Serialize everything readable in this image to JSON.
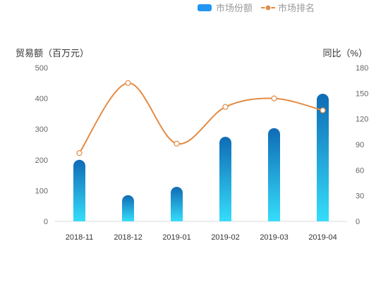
{
  "chart_data": {
    "type": "bar",
    "categories": [
      "2018-11",
      "2018-12",
      "2019-01",
      "2019-02",
      "2019-03",
      "2019-04"
    ],
    "series": [
      {
        "name": "市场份额",
        "type": "bar",
        "axis": "left",
        "values": [
          200,
          85,
          112,
          275,
          303,
          415
        ]
      },
      {
        "name": "市场排名",
        "type": "line",
        "axis": "right",
        "smooth": true,
        "values": [
          80,
          162,
          91,
          134,
          144,
          130
        ]
      }
    ],
    "ylabel_left": "贸易额（百万元）",
    "ylabel_right": "同比（%）",
    "ylim_left": [
      0,
      500
    ],
    "ylim_right": [
      0,
      180
    ],
    "yticks_left": [
      0,
      100,
      200,
      300,
      400,
      500
    ],
    "yticks_right": [
      0,
      30,
      60,
      90,
      120,
      150,
      180
    ],
    "grid": false,
    "legend_position": "top-right",
    "colors": {
      "bar_top": "#0f6bb5",
      "bar_bottom": "#35ddfa",
      "line": "#e38b44",
      "legend_bar": "#2196f3"
    }
  }
}
